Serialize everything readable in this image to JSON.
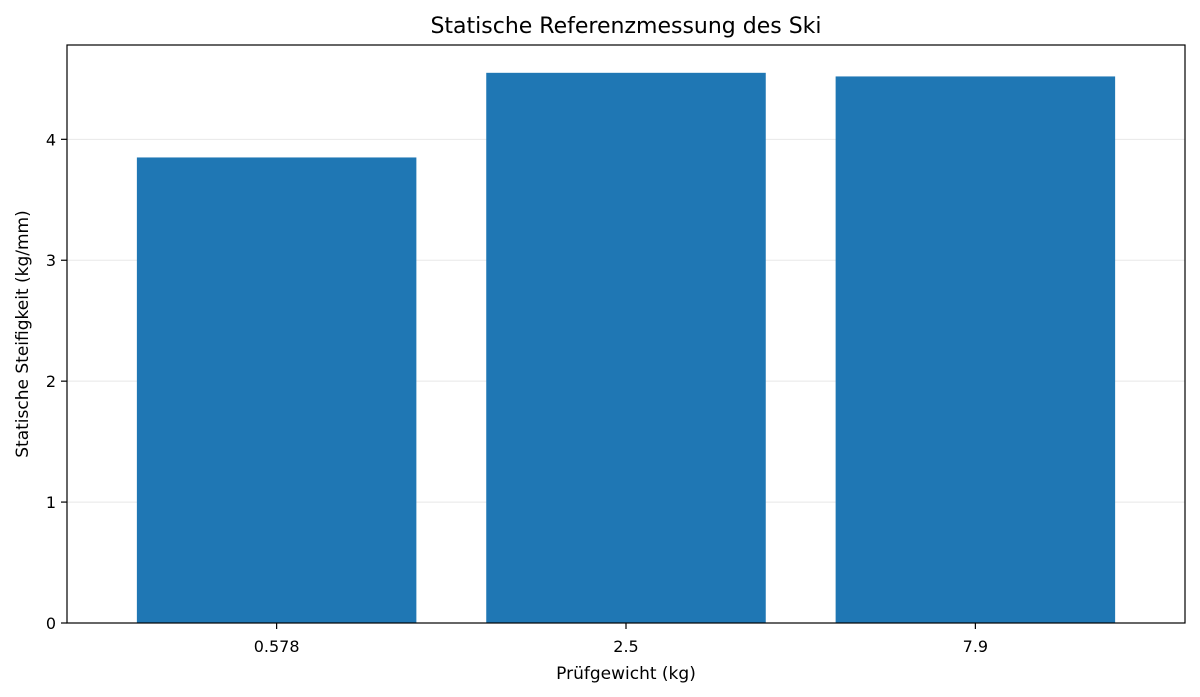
{
  "chart_data": {
    "type": "bar",
    "title": "Statische Referenzmessung des Ski",
    "xlabel": "Prüfgewicht (kg)",
    "ylabel": "Statische Steifigkeit (kg/mm)",
    "categories": [
      "0.578",
      "2.5",
      "7.9"
    ],
    "values": [
      3.85,
      4.55,
      4.52
    ],
    "yticks": [
      0,
      1,
      2,
      3,
      4
    ],
    "ylim": [
      0,
      4.78
    ],
    "grid": "horizontal",
    "bar_color": "#1f77b4"
  }
}
